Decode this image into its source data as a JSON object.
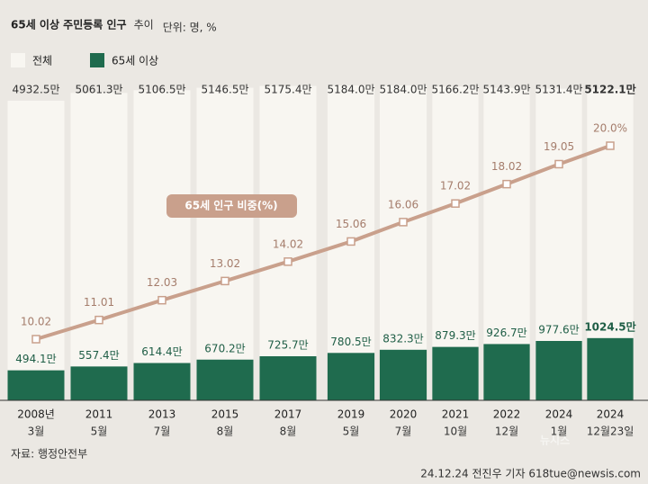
{
  "chart_data": {
    "type": "bar",
    "title": "65세 이상 주민등록 인구",
    "title_suffix": "추이",
    "unit": "단위: 명, %",
    "categories": [
      "2008년",
      "2011",
      "2013",
      "2015",
      "2017",
      "2019",
      "2020",
      "2021",
      "2022",
      "2024",
      "2024"
    ],
    "category_sublabels": [
      "3월",
      "5월",
      "7월",
      "8월",
      "8월",
      "5월",
      "7월",
      "10월",
      "12월",
      "1월",
      "12월23일"
    ],
    "series": [
      {
        "name": "전체",
        "color": "#f8f6f1",
        "values": [
          4932.5,
          5061.3,
          5106.5,
          5146.5,
          5175.4,
          5184.0,
          5184.0,
          5166.2,
          5143.9,
          5131.4,
          5122.1
        ],
        "value_labels": [
          "4932.5만",
          "5061.3만",
          "5106.5만",
          "5146.5만",
          "5175.4만",
          "5184.0만",
          "5184.0만",
          "5166.2만",
          "5143.9만",
          "5131.4만",
          "5122.1만"
        ]
      },
      {
        "name": "65세 이상",
        "color": "#1f6b4e",
        "values": [
          494.1,
          557.4,
          614.4,
          670.2,
          725.7,
          780.5,
          832.3,
          879.3,
          926.7,
          977.6,
          1024.5
        ],
        "value_labels": [
          "494.1만",
          "557.4만",
          "614.4만",
          "670.2만",
          "725.7만",
          "780.5만",
          "832.3만",
          "879.3만",
          "926.7만",
          "977.6만",
          "1024.5만"
        ]
      },
      {
        "name": "65세 인구 비중(%)",
        "type": "line",
        "axis": "y2",
        "color": "#c9a08c",
        "values": [
          10.02,
          11.01,
          12.03,
          13.02,
          14.02,
          15.06,
          16.06,
          17.02,
          18.02,
          19.05,
          20.0
        ],
        "value_labels": [
          "10.02",
          "11.01",
          "12.03",
          "13.02",
          "14.02",
          "15.06",
          "16.06",
          "17.02",
          "18.02",
          "19.05",
          "20.0%"
        ]
      }
    ],
    "source": "자료: 행정안전부",
    "credit": "24.12.24 전진우 기자 618tue@newsis.com",
    "watermark": "뉴시스"
  }
}
